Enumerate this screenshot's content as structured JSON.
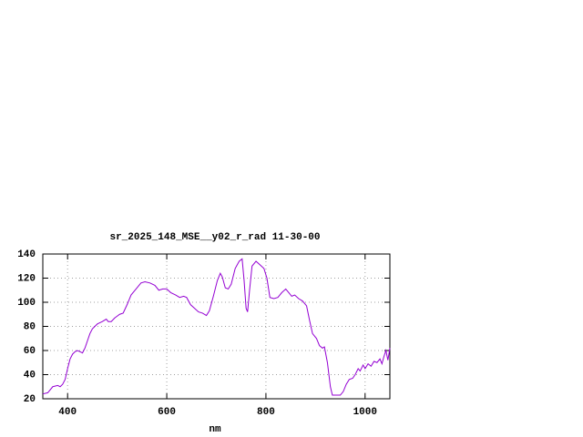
{
  "chart_data": {
    "type": "line",
    "title": "sr_2025_148_MSE__y02_r_rad 11-30-00",
    "x_label": "nm",
    "xlim": [
      350,
      1050
    ],
    "xticks": [
      400,
      600,
      800,
      1000
    ],
    "ylim": [
      20,
      140
    ],
    "yticks": [
      20,
      40,
      60,
      80,
      100,
      120,
      140
    ],
    "grid": true,
    "series": [
      {
        "color": "#9400d3",
        "x": [
          350,
          360,
          370,
          380,
          385,
          390,
          395,
          400,
          405,
          410,
          415,
          420,
          425,
          430,
          435,
          440,
          445,
          450,
          460,
          470,
          478,
          482,
          488,
          495,
          505,
          512,
          520,
          528,
          538,
          548,
          556,
          566,
          576,
          584,
          592,
          600,
          608,
          618,
          626,
          634,
          640,
          648,
          656,
          664,
          672,
          680,
          686,
          694,
          702,
          708,
          712,
          718,
          724,
          730,
          738,
          746,
          752,
          756,
          760,
          763,
          767,
          772,
          780,
          788,
          796,
          802,
          808,
          816,
          824,
          832,
          840,
          846,
          852,
          858,
          866,
          874,
          882,
          888,
          894,
          902,
          908,
          914,
          918,
          924,
          930,
          934,
          940,
          950,
          956,
          962,
          968,
          975,
          980,
          986,
          990,
          996,
          1000,
          1006,
          1012,
          1018,
          1024,
          1030,
          1034,
          1038,
          1042,
          1046,
          1050
        ],
        "values": [
          24,
          25,
          30,
          31,
          30,
          32,
          36,
          45,
          53,
          57,
          59,
          60,
          59,
          58,
          62,
          68,
          74,
          78,
          82,
          84,
          86,
          84,
          84,
          87,
          90,
          91,
          98,
          106,
          111,
          116,
          117,
          116,
          114,
          110,
          111,
          111,
          108,
          106,
          104,
          105,
          104,
          98,
          95,
          92,
          91,
          89,
          93,
          105,
          118,
          124,
          121,
          112,
          111,
          115,
          128,
          134,
          136,
          118,
          95,
          92,
          110,
          130,
          134,
          131,
          128,
          120,
          104,
          103,
          104,
          108,
          111,
          108,
          105,
          106,
          103,
          101,
          97,
          85,
          74,
          70,
          64,
          62,
          63,
          50,
          30,
          23,
          23,
          23,
          26,
          32,
          36,
          37,
          40,
          45,
          43,
          48,
          45,
          49,
          47,
          51,
          50,
          53,
          49,
          55,
          60,
          52,
          62
        ]
      }
    ]
  }
}
